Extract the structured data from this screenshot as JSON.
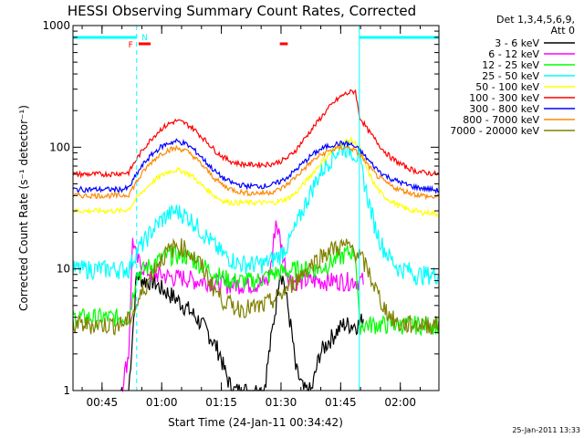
{
  "chart_data": {
    "type": "line",
    "title": "HESSI Observing Summary Count Rates, Corrected",
    "xlabel": "Start Time (24-Jan-11 00:34:42)",
    "ylabel": "Corrected Count Rate (s⁻¹ detector⁻¹)",
    "yscale": "log",
    "xunit": "minutes after 00:34:42",
    "xlim": [
      0,
      92
    ],
    "ylim": [
      1,
      1000
    ],
    "x_ticks": [
      {
        "x": 7.3,
        "label": "00:45"
      },
      {
        "x": 22.3,
        "label": "01:00"
      },
      {
        "x": 37.3,
        "label": "01:15"
      },
      {
        "x": 52.3,
        "label": "01:30"
      },
      {
        "x": 67.3,
        "label": "01:45"
      },
      {
        "x": 82.3,
        "label": "02:00"
      }
    ],
    "y_ticks": [
      {
        "y": 1,
        "label": "1"
      },
      {
        "y": 10,
        "label": "10"
      },
      {
        "y": 100,
        "label": "100"
      },
      {
        "y": 1000,
        "label": "1000"
      }
    ],
    "legend_header": [
      "Det 1,3,4,5,6,9,",
      "Att 0"
    ],
    "series": [
      {
        "name": "3 - 6 keV",
        "color": "#000000",
        "x": [
          14,
          16,
          18,
          20,
          22,
          25,
          28,
          31,
          34,
          37,
          38,
          40,
          42,
          45,
          48,
          51,
          52,
          53,
          55,
          56,
          58,
          60,
          62,
          64,
          66,
          68,
          70,
          72,
          73
        ],
        "y": [
          1,
          9,
          8,
          8,
          7,
          6,
          5,
          4,
          3,
          2,
          1.5,
          1,
          1,
          1,
          1,
          5,
          10,
          8,
          3,
          1.5,
          1,
          1,
          2,
          2.5,
          3,
          3.5,
          3.5,
          3.5,
          4
        ]
      },
      {
        "name": "6 - 12 keV",
        "color": "#ff00ff",
        "x": [
          12,
          14,
          15,
          16,
          18,
          20,
          22,
          25,
          28,
          31,
          34,
          37,
          40,
          43,
          46,
          49,
          50,
          51,
          52,
          53,
          54,
          55,
          58,
          61,
          64,
          67,
          70,
          73
        ],
        "y": [
          1,
          2,
          18,
          12,
          10,
          9,
          9,
          8.5,
          8.5,
          8,
          8,
          7.5,
          7.5,
          7.5,
          7.5,
          8,
          12,
          25,
          18,
          12,
          9,
          8,
          8,
          8,
          8,
          8,
          8,
          8
        ]
      },
      {
        "name": "12 - 25 keV",
        "color": "#00ff00",
        "x": [
          0,
          4,
          8,
          12,
          14,
          16,
          18,
          20,
          22,
          24,
          26,
          28,
          30,
          32,
          34,
          36,
          38,
          40,
          42,
          44,
          46,
          48,
          50,
          52,
          54,
          56,
          58,
          60,
          62,
          64,
          66,
          68,
          70,
          71,
          72,
          74,
          76,
          78,
          80,
          82,
          84,
          86,
          88,
          90,
          92
        ],
        "y": [
          4,
          4,
          4,
          4,
          4,
          9,
          10,
          11,
          12,
          13,
          13,
          13,
          12,
          11,
          10,
          9,
          8.5,
          8,
          8,
          8,
          8,
          8.5,
          9,
          9.5,
          9.5,
          10,
          10,
          10,
          10,
          11,
          12,
          13,
          14,
          14,
          3.5,
          3.5,
          3.5,
          3.5,
          3.5,
          3.5,
          3.5,
          3.5,
          3.5,
          3.5,
          3.5
        ]
      },
      {
        "name": "25 - 50 keV",
        "color": "#00ffff",
        "x": [
          0,
          4,
          8,
          12,
          14,
          16,
          18,
          20,
          22,
          24,
          26,
          28,
          30,
          32,
          34,
          36,
          38,
          40,
          42,
          44,
          46,
          48,
          50,
          52,
          54,
          56,
          58,
          60,
          62,
          64,
          66,
          68,
          70,
          72,
          74,
          76,
          78,
          80,
          82,
          84,
          86,
          88,
          90,
          92
        ],
        "y": [
          10,
          10,
          10,
          10,
          10,
          14,
          17,
          21,
          25,
          28,
          30,
          28,
          25,
          21,
          18,
          15,
          13,
          12,
          11,
          11,
          11,
          11,
          12,
          13,
          16,
          22,
          32,
          45,
          60,
          75,
          90,
          100,
          95,
          80,
          40,
          22,
          15,
          12,
          10,
          10,
          9,
          9,
          9,
          9
        ]
      },
      {
        "name": "50 - 100 keV",
        "color": "#ffff00",
        "x": [
          0,
          4,
          8,
          12,
          14,
          16,
          18,
          20,
          22,
          24,
          26,
          28,
          30,
          32,
          34,
          36,
          38,
          40,
          42,
          44,
          46,
          48,
          50,
          52,
          54,
          56,
          58,
          60,
          62,
          64,
          66,
          68,
          70,
          72,
          74,
          76,
          78,
          80,
          82,
          84,
          86,
          88,
          90,
          92
        ],
        "y": [
          30,
          30,
          30,
          30,
          31,
          38,
          45,
          52,
          58,
          63,
          65,
          63,
          58,
          50,
          44,
          39,
          36,
          35,
          35,
          35,
          35,
          35,
          35,
          36,
          38,
          42,
          50,
          60,
          72,
          85,
          98,
          110,
          115,
          100,
          65,
          48,
          40,
          36,
          33,
          31,
          30,
          29,
          29,
          28
        ]
      },
      {
        "name": "100 - 300 keV",
        "color": "#ff0000",
        "x": [
          0,
          4,
          8,
          12,
          14,
          16,
          18,
          20,
          22,
          24,
          26,
          28,
          30,
          32,
          34,
          36,
          38,
          40,
          42,
          44,
          46,
          48,
          50,
          52,
          54,
          56,
          58,
          60,
          62,
          64,
          66,
          68,
          70,
          71,
          72,
          74,
          76,
          78,
          80,
          82,
          84,
          86,
          88,
          90,
          92
        ],
        "y": [
          60,
          60,
          60,
          61,
          62,
          80,
          100,
          120,
          140,
          155,
          165,
          158,
          145,
          125,
          108,
          92,
          82,
          76,
          73,
          72,
          72,
          72,
          73,
          76,
          82,
          95,
          115,
          140,
          170,
          205,
          240,
          270,
          285,
          290,
          180,
          140,
          115,
          95,
          82,
          74,
          68,
          64,
          62,
          61,
          60
        ]
      },
      {
        "name": "300 - 800 keV",
        "color": "#0000ff",
        "x": [
          0,
          4,
          8,
          12,
          14,
          16,
          18,
          20,
          22,
          24,
          26,
          28,
          30,
          32,
          34,
          36,
          38,
          40,
          42,
          44,
          46,
          48,
          50,
          52,
          54,
          56,
          58,
          60,
          62,
          64,
          66,
          68,
          70,
          72,
          74,
          76,
          78,
          80,
          82,
          84,
          86,
          88,
          90,
          92
        ],
        "y": [
          45,
          45,
          45,
          45,
          46,
          60,
          75,
          88,
          100,
          108,
          112,
          108,
          98,
          85,
          72,
          62,
          55,
          51,
          49,
          48,
          48,
          48,
          49,
          52,
          57,
          65,
          75,
          86,
          95,
          102,
          106,
          108,
          105,
          95,
          80,
          68,
          60,
          55,
          52,
          49,
          47,
          46,
          45,
          44
        ]
      },
      {
        "name": "800 - 7000 keV",
        "color": "#ff8800",
        "x": [
          0,
          4,
          8,
          12,
          14,
          16,
          18,
          20,
          22,
          24,
          26,
          28,
          30,
          32,
          34,
          36,
          38,
          40,
          42,
          44,
          46,
          48,
          50,
          52,
          54,
          56,
          58,
          60,
          62,
          64,
          66,
          68,
          70,
          72,
          74,
          76,
          78,
          80,
          82,
          84,
          86,
          88,
          90,
          92
        ],
        "y": [
          40,
          40,
          40,
          40,
          41,
          52,
          65,
          77,
          88,
          95,
          98,
          95,
          86,
          74,
          63,
          54,
          48,
          45,
          43,
          42,
          42,
          42,
          43,
          45,
          50,
          57,
          66,
          76,
          85,
          92,
          97,
          100,
          98,
          88,
          72,
          60,
          53,
          48,
          45,
          43,
          41,
          40,
          39,
          39
        ]
      },
      {
        "name": "7000 - 20000 keV",
        "color": "#808000",
        "x": [
          0,
          4,
          8,
          12,
          14,
          16,
          18,
          20,
          22,
          24,
          26,
          28,
          30,
          32,
          34,
          36,
          38,
          40,
          42,
          44,
          46,
          48,
          50,
          52,
          54,
          56,
          58,
          60,
          62,
          64,
          66,
          68,
          70,
          72,
          74,
          76,
          78,
          80,
          82,
          84,
          86,
          88,
          90,
          92
        ],
        "y": [
          3.5,
          3.5,
          3.5,
          3.5,
          3.8,
          5,
          7,
          9.5,
          12,
          14,
          15.5,
          15,
          13,
          11,
          8.5,
          6.5,
          5.5,
          5,
          4.8,
          4.8,
          4.8,
          5,
          5.5,
          6,
          7,
          8,
          9.5,
          11,
          12.5,
          14,
          15,
          15.5,
          15,
          13,
          10,
          7,
          5,
          4,
          3.5,
          3.5,
          3.5,
          3.5,
          3.5,
          3.5
        ]
      }
    ],
    "attenuator_bar_segments": [
      [
        0,
        16
      ],
      [
        72,
        92
      ]
    ],
    "flag_labels": [
      {
        "x": 14.5,
        "label": "F",
        "color": "#ff0000"
      },
      {
        "x": 18,
        "label": "N",
        "color": "#00ffff"
      }
    ],
    "flare_bar_segments": [
      [
        16.5,
        19.5
      ],
      [
        52,
        54
      ]
    ],
    "vertical_lines": [
      {
        "x": 16,
        "style": "dashed"
      },
      {
        "x": 72,
        "style": "solid"
      },
      {
        "x": 92,
        "style": "dashed"
      }
    ],
    "footer_timestamp": "25-Jan-2011 13:33"
  }
}
